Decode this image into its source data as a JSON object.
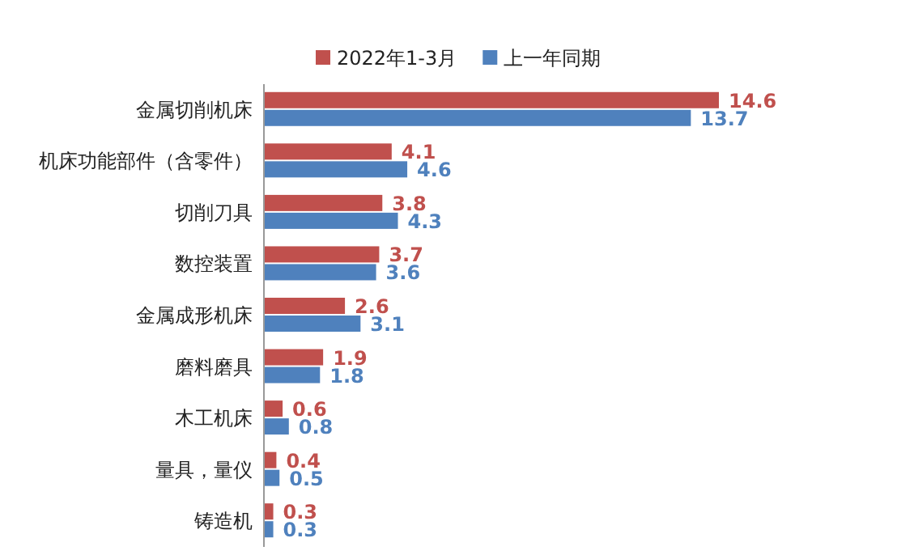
{
  "chart_data": {
    "type": "bar",
    "orientation": "horizontal",
    "categories": [
      "金属切削机床",
      "机床功能部件（含零件）",
      "切削刀具",
      "数控装置",
      "金属成形机床",
      "磨料磨具",
      "木工机床",
      "量具，量仪",
      "铸造机"
    ],
    "series": [
      {
        "name": "2022年1-3月",
        "color": "#c0504d",
        "values": [
          14.6,
          4.1,
          3.8,
          3.7,
          2.6,
          1.9,
          0.6,
          0.4,
          0.3
        ]
      },
      {
        "name": "上一年同期",
        "color": "#4f81bd",
        "values": [
          13.7,
          4.6,
          4.3,
          3.6,
          3.1,
          1.8,
          0.8,
          0.5,
          0.3
        ]
      }
    ],
    "data_labels": true,
    "legend": "top"
  }
}
